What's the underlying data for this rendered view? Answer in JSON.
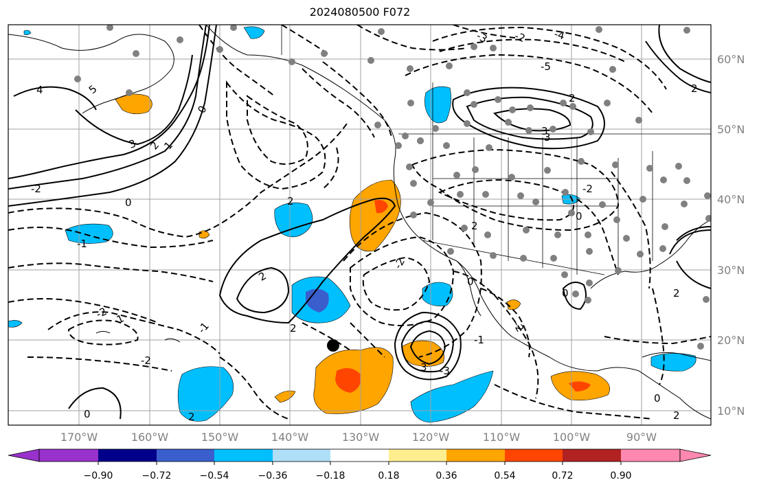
{
  "title": "2024080500 F072",
  "lat_labels": [
    "60°N",
    "50°N",
    "40°N",
    "30°N",
    "20°N",
    "10°N"
  ],
  "lon_labels": [
    "170°W",
    "160°W",
    "150°W",
    "140°W",
    "130°W",
    "120°W",
    "110°W",
    "100°W",
    "90°W"
  ],
  "colorbar": {
    "ticks": [
      "−0.90",
      "−0.72",
      "−0.54",
      "−0.36",
      "−0.18",
      "0.18",
      "0.36",
      "0.54",
      "0.72",
      "0.90"
    ],
    "colors": [
      "#9932cc",
      "#00008b",
      "#3a5fcd",
      "#00bfff",
      "#aedff7",
      "#ffffff",
      "#ffee8f",
      "#ffa500",
      "#ff4500",
      "#b22222",
      "#ff88b0"
    ]
  },
  "contour_labels": [
    "4",
    "5",
    "3",
    "2",
    "1",
    "0",
    "-1",
    "-2",
    "2",
    "0",
    "2",
    "-2",
    "1",
    "-2",
    "-1",
    "0",
    "2",
    "2",
    "3",
    "-3",
    "-2",
    "-4",
    "-5",
    "2",
    "3",
    "2",
    "-2",
    "0",
    "-2",
    "3",
    "-3",
    "0",
    "-2",
    "-1",
    "2",
    "0",
    "2",
    "0",
    "2"
  ],
  "fill_colors": {
    "orange": "#ffa500",
    "red": "#ff4500",
    "light_blue": "#00bfff",
    "medium_blue": "#3a5fcd"
  }
}
